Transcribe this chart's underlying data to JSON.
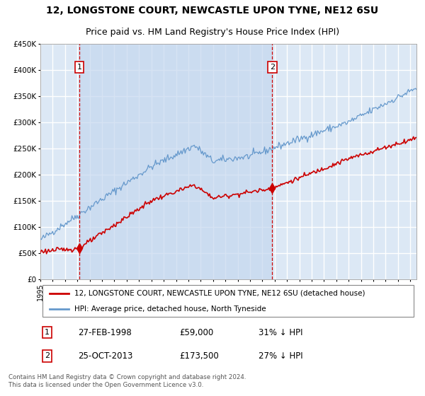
{
  "title": "12, LONGSTONE COURT, NEWCASTLE UPON TYNE, NE12 6SU",
  "subtitle": "Price paid vs. HM Land Registry's House Price Index (HPI)",
  "plot_bg_color": "#dce8f5",
  "grid_color": "#ffffff",
  "ylim": [
    0,
    450000
  ],
  "yticks": [
    0,
    50000,
    100000,
    150000,
    200000,
    250000,
    300000,
    350000,
    400000,
    450000
  ],
  "ytick_labels": [
    "£0",
    "£50K",
    "£100K",
    "£150K",
    "£200K",
    "£250K",
    "£300K",
    "£350K",
    "£400K",
    "£450K"
  ],
  "xlim_start": 1995,
  "xlim_end": 2025.5,
  "transactions": [
    {
      "date_num": 1998.15,
      "price": 59000,
      "label": "1",
      "date_str": "27-FEB-1998",
      "price_str": "£59,000",
      "pct_str": "31% ↓ HPI"
    },
    {
      "date_num": 2013.81,
      "price": 173500,
      "label": "2",
      "date_str": "25-OCT-2013",
      "price_str": "£173,500",
      "pct_str": "27% ↓ HPI"
    }
  ],
  "legend_property": "12, LONGSTONE COURT, NEWCASTLE UPON TYNE, NE12 6SU (detached house)",
  "legend_hpi": "HPI: Average price, detached house, North Tyneside",
  "footer": "Contains HM Land Registry data © Crown copyright and database right 2024.\nThis data is licensed under the Open Government Licence v3.0.",
  "property_line_color": "#cc0000",
  "hpi_line_color": "#6699cc",
  "fill_color": "#c5d8ef",
  "vline_color": "#cc0000",
  "marker_box_color": "#cc0000",
  "title_fontsize": 10,
  "subtitle_fontsize": 9,
  "hpi_seed": 42,
  "prop_seed": 123
}
